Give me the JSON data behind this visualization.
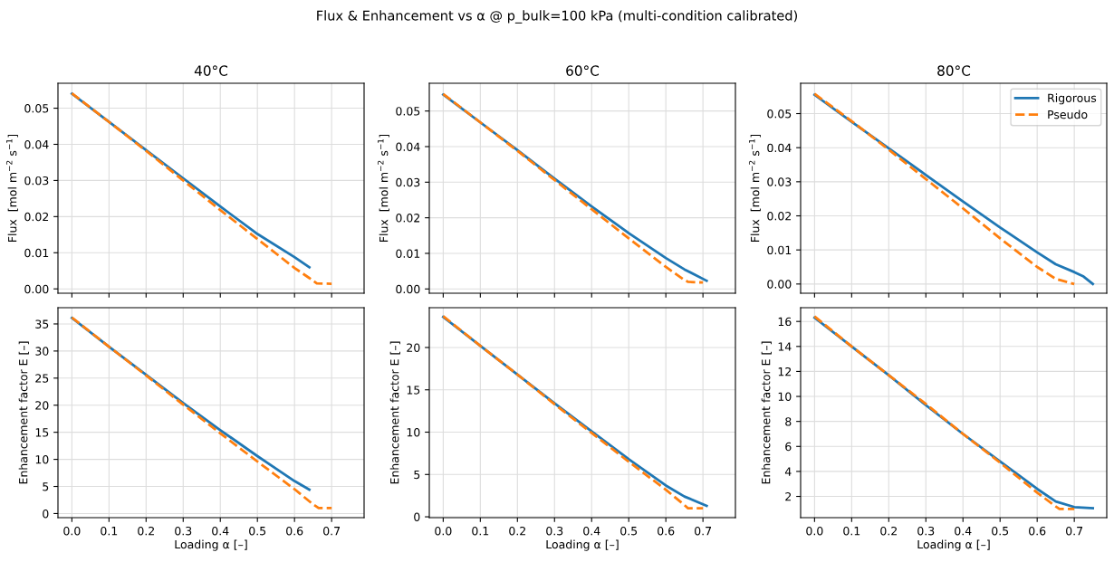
{
  "chart_data": [
    {
      "type": "line",
      "annotations": [
        "Flux & Enhancement vs α @ p_bulk=100 kPa (multi-condition calibrated)"
      ],
      "title": "40°C",
      "ylabel": "Flux  [mol m$^{−2}$ s$^{−1}$]",
      "xlim": [
        -0.0375,
        0.7875
      ],
      "xticks": [
        {
          "value": 0,
          "label": null
        },
        {
          "value": 0.1,
          "label": null
        },
        {
          "value": 0.2,
          "label": null
        },
        {
          "value": 0.3,
          "label": null
        },
        {
          "value": 0.4,
          "label": null
        },
        {
          "value": 0.5,
          "label": null
        },
        {
          "value": 0.6,
          "label": null
        },
        {
          "value": 0.7,
          "label": null
        }
      ],
      "ylim": [
        -0.0012,
        0.0569
      ],
      "yticks": [
        {
          "value": 0,
          "label": "0.00"
        },
        {
          "value": 0.01,
          "label": "0.01"
        },
        {
          "value": 0.02,
          "label": "0.02"
        },
        {
          "value": 0.03,
          "label": "0.03"
        },
        {
          "value": 0.04,
          "label": "0.04"
        },
        {
          "value": 0.05,
          "label": "0.05"
        }
      ],
      "tick_labels": "y",
      "grid": true,
      "series": [
        {
          "color": "#1f77b4",
          "line_style": "solid",
          "x": [
            0,
            0.1,
            0.2,
            0.3,
            0.4,
            0.5,
            0.6,
            0.64
          ],
          "values": [
            0.054,
            0.0462,
            0.0384,
            0.0306,
            0.0228,
            0.0152,
            0.0088,
            0.006
          ]
        },
        {
          "color": "#ff7f0e",
          "line_style": "dashed",
          "x": [
            0,
            0.1,
            0.2,
            0.3,
            0.4,
            0.5,
            0.6,
            0.64,
            0.66,
            0.7
          ],
          "values": [
            0.0541,
            0.0462,
            0.0382,
            0.03,
            0.0218,
            0.0138,
            0.0058,
            0.003,
            0.0015,
            0.0014
          ]
        }
      ]
    },
    {
      "type": "line",
      "title": "60°C",
      "ylabel": "Flux  [mol m$^{−2}$ s$^{−1}$]",
      "xlim": [
        -0.0375,
        0.7875
      ],
      "xticks": [
        {
          "value": 0,
          "label": null
        },
        {
          "value": 0.1,
          "label": null
        },
        {
          "value": 0.2,
          "label": null
        },
        {
          "value": 0.3,
          "label": null
        },
        {
          "value": 0.4,
          "label": null
        },
        {
          "value": 0.5,
          "label": null
        },
        {
          "value": 0.6,
          "label": null
        },
        {
          "value": 0.7,
          "label": null
        }
      ],
      "ylim": [
        -0.0012,
        0.0578
      ],
      "yticks": [
        {
          "value": 0,
          "label": "0.00"
        },
        {
          "value": 0.01,
          "label": "0.01"
        },
        {
          "value": 0.02,
          "label": "0.02"
        },
        {
          "value": 0.03,
          "label": "0.03"
        },
        {
          "value": 0.04,
          "label": "0.04"
        },
        {
          "value": 0.05,
          "label": "0.05"
        }
      ],
      "tick_labels": "y",
      "grid": true,
      "series": [
        {
          "color": "#1f77b4",
          "line_style": "solid",
          "x": [
            0,
            0.1,
            0.2,
            0.3,
            0.4,
            0.5,
            0.6,
            0.65,
            0.71
          ],
          "values": [
            0.0546,
            0.0468,
            0.039,
            0.031,
            0.0232,
            0.0157,
            0.0087,
            0.0055,
            0.0023
          ]
        },
        {
          "color": "#ff7f0e",
          "line_style": "dashed",
          "x": [
            0,
            0.1,
            0.2,
            0.3,
            0.4,
            0.5,
            0.6,
            0.65,
            0.66,
            0.7
          ],
          "values": [
            0.0548,
            0.0468,
            0.0388,
            0.0306,
            0.0224,
            0.0142,
            0.0062,
            0.0025,
            0.002,
            0.0018
          ]
        }
      ]
    },
    {
      "type": "line",
      "title": "80°C",
      "ylabel": "Flux  [mol m$^{−2}$ s$^{−1}$]",
      "xlim": [
        -0.0375,
        0.7875
      ],
      "xticks": [
        {
          "value": 0,
          "label": null
        },
        {
          "value": 0.1,
          "label": null
        },
        {
          "value": 0.2,
          "label": null
        },
        {
          "value": 0.3,
          "label": null
        },
        {
          "value": 0.4,
          "label": null
        },
        {
          "value": 0.5,
          "label": null
        },
        {
          "value": 0.6,
          "label": null
        },
        {
          "value": 0.7,
          "label": null
        }
      ],
      "ylim": [
        -0.0027,
        0.0589
      ],
      "yticks": [
        {
          "value": 0,
          "label": "0.00"
        },
        {
          "value": 0.01,
          "label": "0.01"
        },
        {
          "value": 0.02,
          "label": "0.02"
        },
        {
          "value": 0.03,
          "label": "0.03"
        },
        {
          "value": 0.04,
          "label": "0.04"
        },
        {
          "value": 0.05,
          "label": "0.05"
        }
      ],
      "tick_labels": "y",
      "grid": true,
      "legend": "top right",
      "series": [
        {
          "name": "Rigorous",
          "color": "#1f77b4",
          "line_style": "solid",
          "x": [
            0,
            0.1,
            0.2,
            0.3,
            0.4,
            0.5,
            0.6,
            0.65,
            0.7,
            0.725,
            0.75
          ],
          "values": [
            0.0555,
            0.0476,
            0.0398,
            0.032,
            0.0242,
            0.0166,
            0.0093,
            0.0058,
            0.0035,
            0.0022,
            0.0
          ]
        },
        {
          "name": "Pseudo",
          "color": "#ff7f0e",
          "line_style": "dashed",
          "x": [
            0,
            0.1,
            0.2,
            0.3,
            0.4,
            0.5,
            0.6,
            0.65,
            0.7
          ],
          "values": [
            0.0558,
            0.0478,
            0.0394,
            0.0308,
            0.0222,
            0.0134,
            0.005,
            0.0015,
            0.0
          ]
        }
      ]
    },
    {
      "type": "line",
      "xlabel": "Loading α [–]",
      "ylabel": "Enhancement factor E [–]",
      "xlim": [
        -0.0375,
        0.7875
      ],
      "xticks": [
        {
          "value": 0,
          "label": "0.0"
        },
        {
          "value": 0.1,
          "label": "0.1"
        },
        {
          "value": 0.2,
          "label": "0.2"
        },
        {
          "value": 0.3,
          "label": "0.3"
        },
        {
          "value": 0.4,
          "label": "0.4"
        },
        {
          "value": 0.5,
          "label": "0.5"
        },
        {
          "value": 0.6,
          "label": "0.6"
        },
        {
          "value": 0.7,
          "label": "0.7"
        }
      ],
      "ylim": [
        -0.76,
        38.0
      ],
      "yticks": [
        0,
        5,
        10,
        15,
        20,
        25,
        30,
        35
      ],
      "grid": true,
      "series": [
        {
          "color": "#1f77b4",
          "line_style": "solid",
          "x": [
            0,
            0.1,
            0.2,
            0.3,
            0.4,
            0.5,
            0.6,
            0.64
          ],
          "values": [
            36.1,
            30.8,
            25.6,
            20.4,
            15.4,
            10.6,
            6.0,
            4.4
          ]
        },
        {
          "color": "#ff7f0e",
          "line_style": "dashed",
          "x": [
            0,
            0.1,
            0.2,
            0.3,
            0.4,
            0.5,
            0.6,
            0.65,
            0.665,
            0.7
          ],
          "values": [
            36.2,
            30.8,
            25.5,
            20.1,
            14.8,
            9.6,
            4.5,
            1.7,
            1.0,
            1.0
          ]
        }
      ]
    },
    {
      "type": "line",
      "xlabel": "Loading α [–]",
      "ylabel": "Enhancement factor E [–]",
      "xlim": [
        -0.0375,
        0.7875
      ],
      "xticks": [
        {
          "value": 0,
          "label": "0.0"
        },
        {
          "value": 0.1,
          "label": "0.1"
        },
        {
          "value": 0.2,
          "label": "0.2"
        },
        {
          "value": 0.3,
          "label": "0.3"
        },
        {
          "value": 0.4,
          "label": "0.4"
        },
        {
          "value": 0.5,
          "label": "0.5"
        },
        {
          "value": 0.6,
          "label": "0.6"
        },
        {
          "value": 0.7,
          "label": "0.7"
        }
      ],
      "ylim": [
        -0.1,
        24.7
      ],
      "yticks": [
        0,
        5,
        10,
        15,
        20
      ],
      "grid": true,
      "series": [
        {
          "color": "#1f77b4",
          "line_style": "solid",
          "x": [
            0,
            0.1,
            0.2,
            0.3,
            0.4,
            0.5,
            0.6,
            0.65,
            0.71
          ],
          "values": [
            23.6,
            20.2,
            16.8,
            13.4,
            10.1,
            6.8,
            3.7,
            2.4,
            1.3
          ]
        },
        {
          "color": "#ff7f0e",
          "line_style": "dashed",
          "x": [
            0,
            0.1,
            0.2,
            0.3,
            0.4,
            0.5,
            0.6,
            0.65,
            0.66,
            0.7
          ],
          "values": [
            23.7,
            20.2,
            16.8,
            13.3,
            9.9,
            6.5,
            3.2,
            1.4,
            1.0,
            1.0
          ]
        }
      ]
    },
    {
      "type": "line",
      "xlabel": "Loading α [–]",
      "ylabel": "Enhancement factor E [–]",
      "xlim": [
        -0.0375,
        0.7875
      ],
      "xticks": [
        {
          "value": 0,
          "label": "0.0"
        },
        {
          "value": 0.1,
          "label": "0.1"
        },
        {
          "value": 0.2,
          "label": "0.2"
        },
        {
          "value": 0.3,
          "label": "0.3"
        },
        {
          "value": 0.4,
          "label": "0.4"
        },
        {
          "value": 0.5,
          "label": "0.5"
        },
        {
          "value": 0.6,
          "label": "0.6"
        },
        {
          "value": 0.7,
          "label": "0.7"
        }
      ],
      "ylim": [
        0.3,
        17.1
      ],
      "yticks": [
        2,
        4,
        6,
        8,
        10,
        12,
        14,
        16
      ],
      "grid": true,
      "series": [
        {
          "color": "#1f77b4",
          "line_style": "solid",
          "x": [
            0,
            0.1,
            0.2,
            0.3,
            0.4,
            0.5,
            0.6,
            0.65,
            0.7,
            0.75
          ],
          "values": [
            16.3,
            14.0,
            11.7,
            9.3,
            7.0,
            4.8,
            2.6,
            1.6,
            1.15,
            1.05
          ]
        },
        {
          "color": "#ff7f0e",
          "line_style": "dashed",
          "x": [
            0,
            0.1,
            0.2,
            0.3,
            0.4,
            0.5,
            0.6,
            0.65,
            0.66,
            0.7
          ],
          "values": [
            16.4,
            14.0,
            11.7,
            9.4,
            7.0,
            4.7,
            2.3,
            1.2,
            1.0,
            1.0
          ]
        }
      ]
    }
  ]
}
